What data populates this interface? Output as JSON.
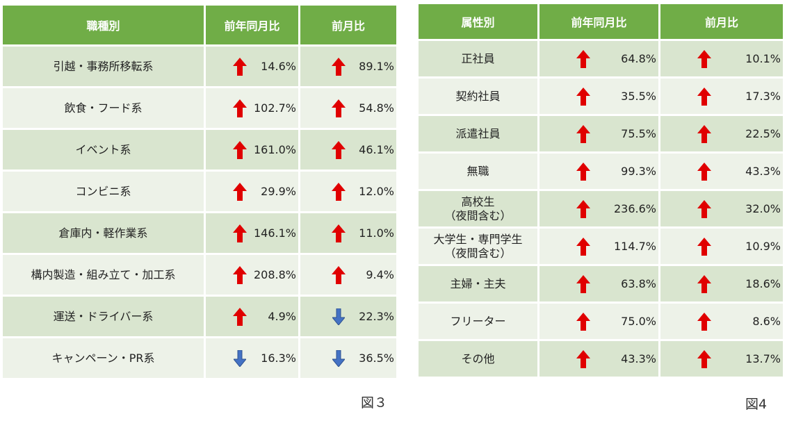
{
  "colors": {
    "header_bg": "#70ad47",
    "row_odd": "#d9e5cf",
    "row_even": "#edf2e8",
    "arrow_up": "#e00000",
    "arrow_down": "#4472c4"
  },
  "figure3": {
    "caption": "図３",
    "headers": [
      "職種別",
      "前年同月比",
      "前月比"
    ],
    "rows": [
      {
        "label": "引越・事務所移転系",
        "yoy": "14.6%",
        "yoy_dir": "up",
        "mom": "89.1%",
        "mom_dir": "up"
      },
      {
        "label": "飲食・フード系",
        "yoy": "102.7%",
        "yoy_dir": "up",
        "mom": "54.8%",
        "mom_dir": "up"
      },
      {
        "label": "イベント系",
        "yoy": "161.0%",
        "yoy_dir": "up",
        "mom": "46.1%",
        "mom_dir": "up"
      },
      {
        "label": "コンビニ系",
        "yoy": "29.9%",
        "yoy_dir": "up",
        "mom": "12.0%",
        "mom_dir": "up"
      },
      {
        "label": "倉庫内・軽作業系",
        "yoy": "146.1%",
        "yoy_dir": "up",
        "mom": "11.0%",
        "mom_dir": "up"
      },
      {
        "label": "構内製造・組み立て・加工系",
        "yoy": "208.8%",
        "yoy_dir": "up",
        "mom": "9.4%",
        "mom_dir": "up"
      },
      {
        "label": "運送・ドライバー系",
        "yoy": "4.9%",
        "yoy_dir": "up",
        "mom": "22.3%",
        "mom_dir": "down"
      },
      {
        "label": "キャンペーン・PR系",
        "yoy": "16.3%",
        "yoy_dir": "down",
        "mom": "36.5%",
        "mom_dir": "down"
      }
    ]
  },
  "figure4": {
    "caption": "図4",
    "headers": [
      "属性別",
      "前年同月比",
      "前月比"
    ],
    "rows": [
      {
        "label": "正社員",
        "label2": "",
        "yoy": "64.8%",
        "yoy_dir": "up",
        "mom": "10.1%",
        "mom_dir": "up"
      },
      {
        "label": "契約社員",
        "label2": "",
        "yoy": "35.5%",
        "yoy_dir": "up",
        "mom": "17.3%",
        "mom_dir": "up"
      },
      {
        "label": "派遣社員",
        "label2": "",
        "yoy": "75.5%",
        "yoy_dir": "up",
        "mom": "22.5%",
        "mom_dir": "up"
      },
      {
        "label": "無職",
        "label2": "",
        "yoy": "99.3%",
        "yoy_dir": "up",
        "mom": "43.3%",
        "mom_dir": "up"
      },
      {
        "label": "高校生",
        "label2": "（夜間含む）",
        "yoy": "236.6%",
        "yoy_dir": "up",
        "mom": "32.0%",
        "mom_dir": "up"
      },
      {
        "label": "大学生・専門学生",
        "label2": "（夜間含む）",
        "yoy": "114.7%",
        "yoy_dir": "up",
        "mom": "10.9%",
        "mom_dir": "up"
      },
      {
        "label": "主婦・主夫",
        "label2": "",
        "yoy": "63.8%",
        "yoy_dir": "up",
        "mom": "18.6%",
        "mom_dir": "up"
      },
      {
        "label": "フリーター",
        "label2": "",
        "yoy": "75.0%",
        "yoy_dir": "up",
        "mom": "8.6%",
        "mom_dir": "up"
      },
      {
        "label": "その他",
        "label2": "",
        "yoy": "43.3%",
        "yoy_dir": "up",
        "mom": "13.7%",
        "mom_dir": "up"
      }
    ]
  }
}
